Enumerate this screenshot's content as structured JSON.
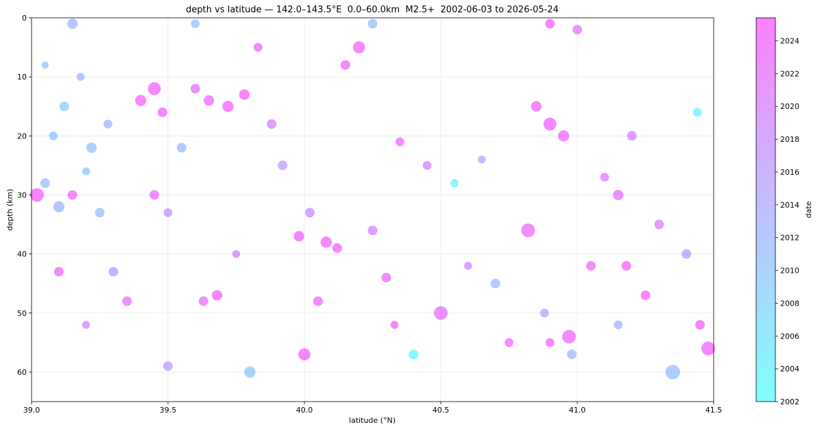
{
  "chart_data": {
    "type": "scatter",
    "title": "depth vs latitude — 142.0–143.5°E  0.0–60.0km  M2.5+  2002-06-03 to 2026-05-24",
    "xlabel": "latitude (°N)",
    "ylabel": "depth (km)",
    "colorbar_label": "date",
    "colormap": "cool",
    "alpha": 0.5,
    "yinvert": true,
    "grid": true,
    "xlim": [
      39.0,
      41.5
    ],
    "xticks": [
      {
        "value": 39,
        "label": "39.0"
      },
      39.5,
      {
        "value": 40,
        "label": "40.0"
      },
      40.5,
      {
        "value": 41,
        "label": "41.0"
      },
      41.5
    ],
    "ylim": [
      0,
      65
    ],
    "yticks": [
      0,
      10,
      20,
      30,
      40,
      50,
      60
    ],
    "clim": [
      2002,
      2025.4
    ],
    "cticks": [
      2002,
      2004,
      2006,
      2008,
      2010,
      2012,
      2014,
      2016,
      2018,
      2020,
      2022,
      2024
    ],
    "x": [
      39.02,
      39.05,
      39.1,
      39.15,
      39.2,
      39.25,
      39.08,
      39.12,
      39.18,
      39.22,
      39.05,
      39.28,
      39.1,
      39.2,
      39.35,
      39.4,
      39.45,
      39.48,
      39.45,
      39.5,
      39.55,
      39.6,
      39.65,
      39.63,
      39.68,
      39.72,
      39.78,
      39.75,
      39.83,
      39.88,
      39.92,
      39.98,
      40.02,
      40.08,
      40.12,
      40.05,
      40.15,
      40.2,
      40.25,
      40.3,
      40.35,
      40.33,
      40.45,
      40.5,
      40.55,
      40.6,
      40.65,
      40.7,
      40.75,
      40.82,
      40.85,
      40.9,
      40.95,
      40.88,
      40.9,
      40.97,
      40.98,
      41.05,
      41.1,
      41.15,
      41.18,
      41.15,
      41.25,
      41.3,
      41.35,
      41.4,
      41.45,
      41.48,
      41.44,
      41.2,
      40.25,
      39.8,
      39.5,
      39.3,
      40.0,
      40.4,
      41.0,
      39.15,
      40.9,
      39.6
    ],
    "values": [
      30,
      28,
      32,
      30,
      26,
      33,
      20,
      15,
      10,
      22,
      8,
      18,
      43,
      52,
      48,
      14,
      12,
      16,
      30,
      33,
      22,
      12,
      14,
      48,
      47,
      15,
      13,
      40,
      5,
      18,
      25,
      37,
      33,
      38,
      39,
      48,
      8,
      5,
      36,
      44,
      21,
      52,
      25,
      50,
      28,
      42,
      24,
      45,
      55,
      36,
      15,
      18,
      20,
      50,
      55,
      54,
      57,
      42,
      27,
      30,
      42,
      52,
      47,
      35,
      60,
      40,
      52,
      56,
      16,
      20,
      1,
      60,
      59,
      43,
      57,
      57,
      2,
      1,
      1,
      1
    ],
    "sizes": [
      3.5,
      3.0,
      3.2,
      3.0,
      2.8,
      3.0,
      2.9,
      3.0,
      2.8,
      3.1,
      2.7,
      2.9,
      3.0,
      2.8,
      3.0,
      3.2,
      3.4,
      3.0,
      3.0,
      2.9,
      3.0,
      3.0,
      3.1,
      3.0,
      3.1,
      3.2,
      3.1,
      2.8,
      2.9,
      3.0,
      3.0,
      3.1,
      3.0,
      3.2,
      3.0,
      3.0,
      3.0,
      3.3,
      3.0,
      3.0,
      2.9,
      2.8,
      2.9,
      3.5,
      2.8,
      2.8,
      2.8,
      3.0,
      2.9,
      3.5,
      3.1,
      3.4,
      3.2,
      2.9,
      2.9,
      3.5,
      3.0,
      3.0,
      2.9,
      3.1,
      3.0,
      2.9,
      3.0,
      3.0,
      3.6,
      3.0,
      3.0,
      3.5,
      2.9,
      3.0,
      3.0,
      3.2,
      3.0,
      3.0,
      3.3,
      3.0,
      3.0,
      3.1,
      3.0,
      2.9
    ],
    "dates": [
      2024.5,
      2011,
      2012,
      2023,
      2010,
      2011,
      2010,
      2009,
      2012,
      2011,
      2010,
      2012,
      2023,
      2019,
      2022,
      2024,
      2024,
      2024,
      2023,
      2017,
      2012,
      2022,
      2023,
      2022,
      2024,
      2024,
      2024,
      2019,
      2024,
      2020,
      2016,
      2024,
      2018,
      2024,
      2024,
      2023,
      2023,
      2024,
      2019,
      2023,
      2022,
      2024,
      2020,
      2022,
      2004,
      2019,
      2014,
      2012,
      2023,
      2023,
      2024,
      2024,
      2023,
      2014,
      2024,
      2023,
      2012,
      2023,
      2020,
      2022,
      2024,
      2013,
      2024,
      2020,
      2011,
      2016,
      2024,
      2024,
      2004,
      2019,
      2011,
      2010,
      2016,
      2015,
      2024,
      2003,
      2021,
      2012,
      2024,
      2010
    ]
  }
}
